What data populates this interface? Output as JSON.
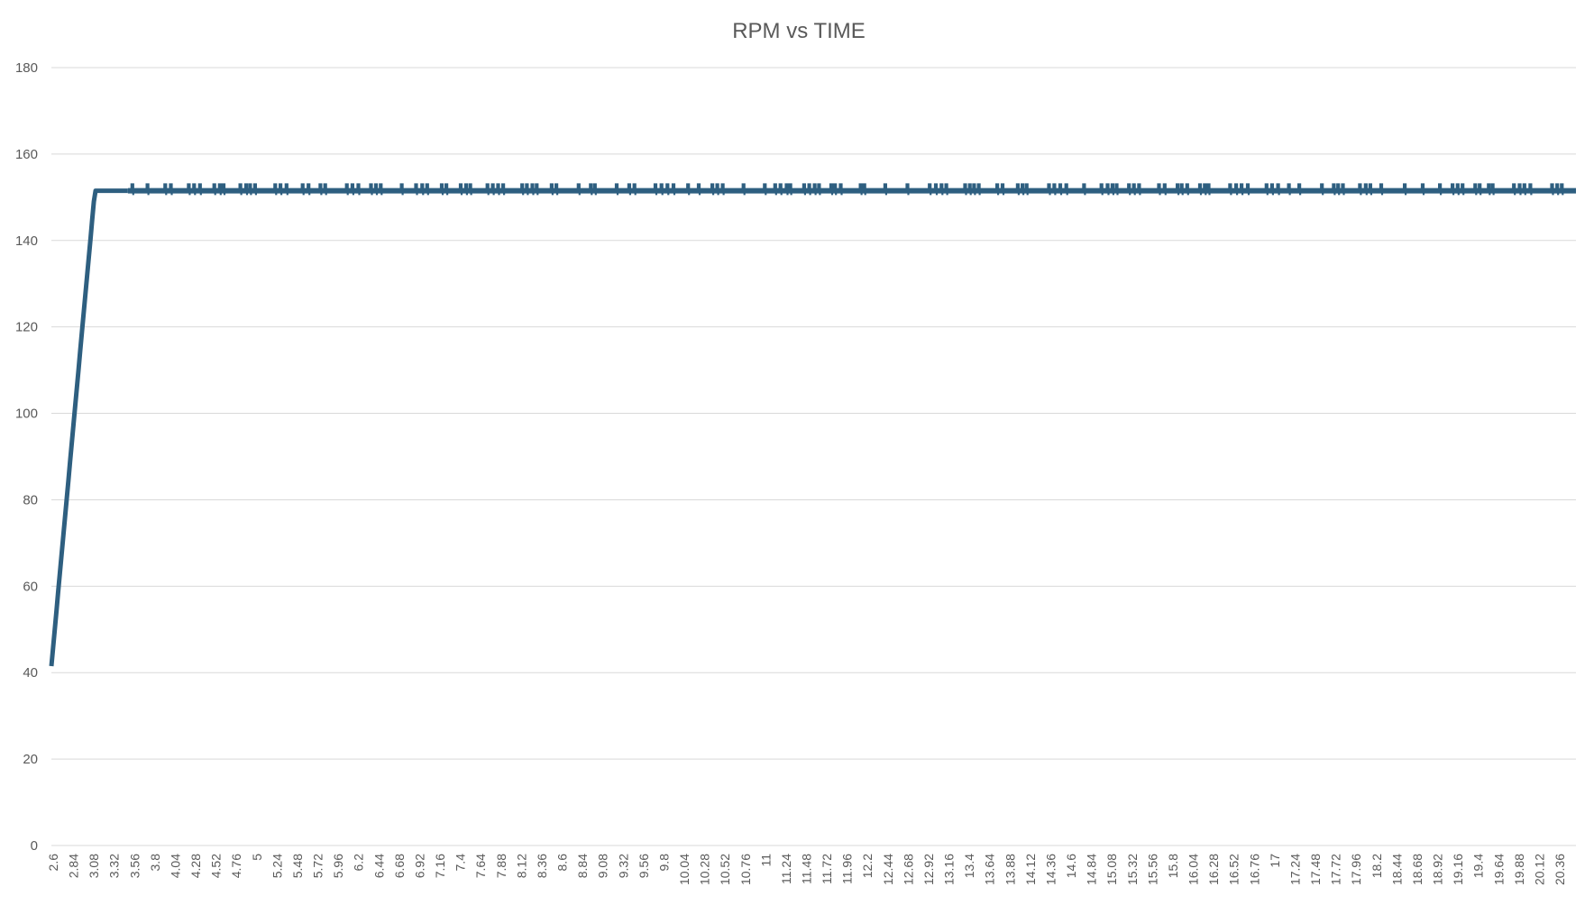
{
  "chart_data": {
    "type": "line",
    "title": "RPM vs TIME",
    "xlabel": "",
    "ylabel": "",
    "ylim": [
      0,
      180
    ],
    "yticks": [
      0,
      20,
      40,
      60,
      80,
      100,
      120,
      140,
      160,
      180
    ],
    "xlim": [
      2.6,
      20.54
    ],
    "x_tick_labels": [
      "2.6",
      "2.84",
      "3.08",
      "3.32",
      "3.56",
      "3.8",
      "4.04",
      "4.28",
      "4.52",
      "4.76",
      "5",
      "5.24",
      "5.48",
      "5.72",
      "5.96",
      "6.2",
      "6.44",
      "6.68",
      "6.92",
      "7.16",
      "7.4",
      "7.64",
      "7.88",
      "8.12",
      "8.36",
      "8.6",
      "8.84",
      "9.08",
      "9.32",
      "9.56",
      "9.8",
      "10.04",
      "10.28",
      "10.52",
      "10.76",
      "11",
      "11.24",
      "11.48",
      "11.72",
      "11.96",
      "12.2",
      "12.44",
      "12.68",
      "12.92",
      "13.16",
      "13.4",
      "13.64",
      "13.88",
      "14.12",
      "14.36",
      "14.6",
      "14.84",
      "15.08",
      "15.32",
      "15.56",
      "15.8",
      "16.04",
      "16.28",
      "16.52",
      "16.76",
      "17",
      "17.24",
      "17.48",
      "17.72",
      "17.96",
      "18.2",
      "18.44",
      "18.68",
      "18.92",
      "19.16",
      "19.4",
      "19.64",
      "19.88",
      "20.12",
      "20.36"
    ],
    "grid": true,
    "legend": "none",
    "series": [
      {
        "color": "#2e5f80",
        "ramp": {
          "x": [
            2.6,
            2.62,
            2.64,
            2.66,
            2.68,
            2.7,
            2.72,
            2.74,
            2.76,
            2.78,
            2.8,
            2.82,
            2.84,
            2.86,
            2.88,
            2.9,
            2.92,
            2.94,
            2.96,
            2.98,
            3.0,
            3.02,
            3.04,
            3.06,
            3.08,
            3.1,
            3.12,
            3.14,
            3.16,
            3.18,
            3.2,
            3.22,
            3.24,
            3.26,
            3.28,
            3.3,
            3.32,
            3.34,
            3.36,
            3.38,
            3.4,
            3.42,
            3.44,
            3.46,
            3.48,
            3.5
          ],
          "y": [
            41.5,
            45.8,
            50.1,
            54.4,
            58.7,
            63.0,
            67.3,
            71.6,
            75.9,
            80.2,
            84.5,
            88.8,
            93.1,
            97.4,
            101.7,
            106.0,
            110.3,
            114.6,
            118.9,
            123.2,
            127.5,
            131.8,
            136.1,
            140.4,
            144.7,
            149.0,
            151.5,
            151.5,
            151.5,
            151.5,
            151.5,
            151.5,
            151.5,
            151.5,
            151.5,
            151.5,
            151.5,
            151.5,
            151.5,
            151.5,
            151.5,
            151.5,
            151.5,
            151.5,
            151.5,
            151.5
          ]
        },
        "steady_value": 151.5,
        "fluctuation_values": [
          150.5,
          153
        ],
        "steady_range": [
          3.5,
          20.54
        ]
      }
    ]
  }
}
